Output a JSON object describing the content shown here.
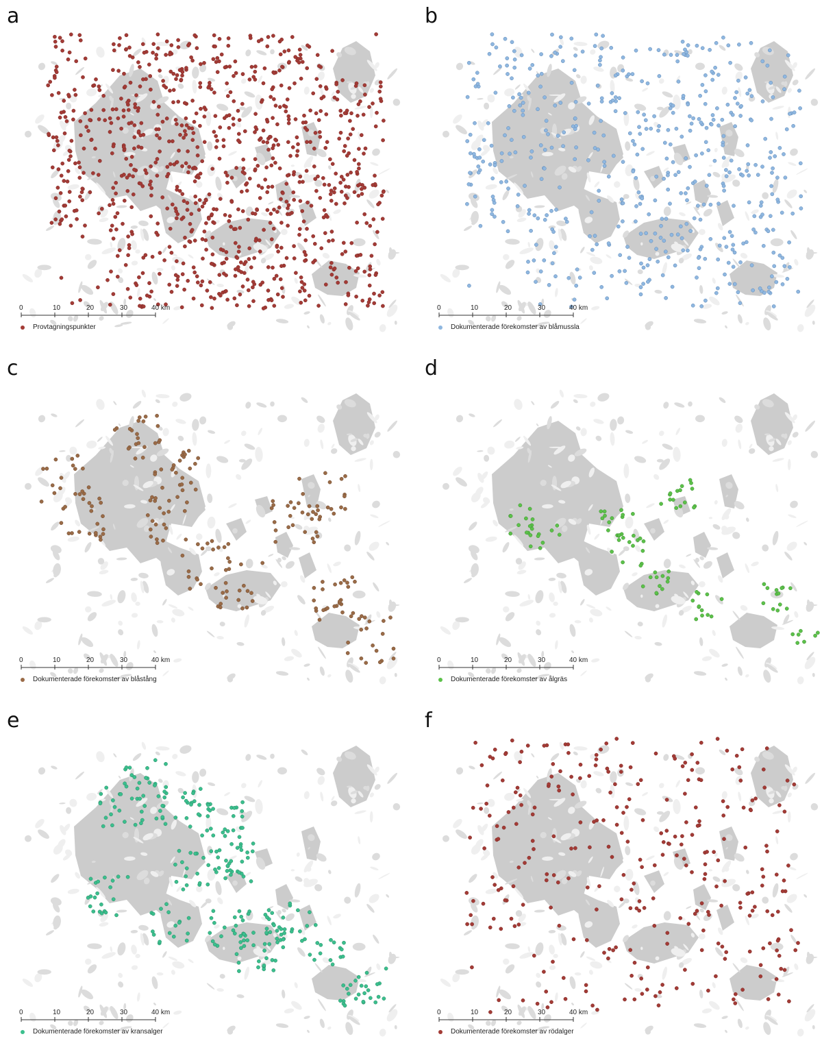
{
  "scale_bar": {
    "ticks": [
      "0",
      "10",
      "20",
      "30",
      "40 km"
    ]
  },
  "panels": [
    {
      "id": "a",
      "letter": "a",
      "legend": "Provtagningspunkter",
      "color": "#a33b36",
      "count": 950,
      "seed": 11,
      "dist": "wide",
      "stroke": "#7d2a26"
    },
    {
      "id": "b",
      "letter": "b",
      "legend": "Dokumenterade förekomster av blåmussla",
      "color": "#8fb7e0",
      "count": 520,
      "seed": 23,
      "dist": "wide",
      "stroke": "#5e88b5"
    },
    {
      "id": "c",
      "letter": "c",
      "legend": "Dokumenterade förekomster av blåstång",
      "color": "#9a6b47",
      "count": 230,
      "seed": 37,
      "dist": "west",
      "stroke": "#6e4a30"
    },
    {
      "id": "d",
      "letter": "d",
      "legend": "Dokumenterade förekomster av ålgräs",
      "color": "#5cc14a",
      "count": 110,
      "seed": 41,
      "dist": "sparse",
      "stroke": "#3f8f32"
    },
    {
      "id": "e",
      "letter": "e",
      "legend": "Dokumenterade förekomster av kransalger",
      "color": "#3bbf8e",
      "count": 300,
      "seed": 53,
      "dist": "north",
      "stroke": "#278a63"
    },
    {
      "id": "f",
      "letter": "f",
      "legend": "Dokumenterade förekomster av rödalger",
      "color": "#a33b36",
      "count": 300,
      "seed": 67,
      "dist": "wide",
      "stroke": "#7d2a26"
    }
  ]
}
